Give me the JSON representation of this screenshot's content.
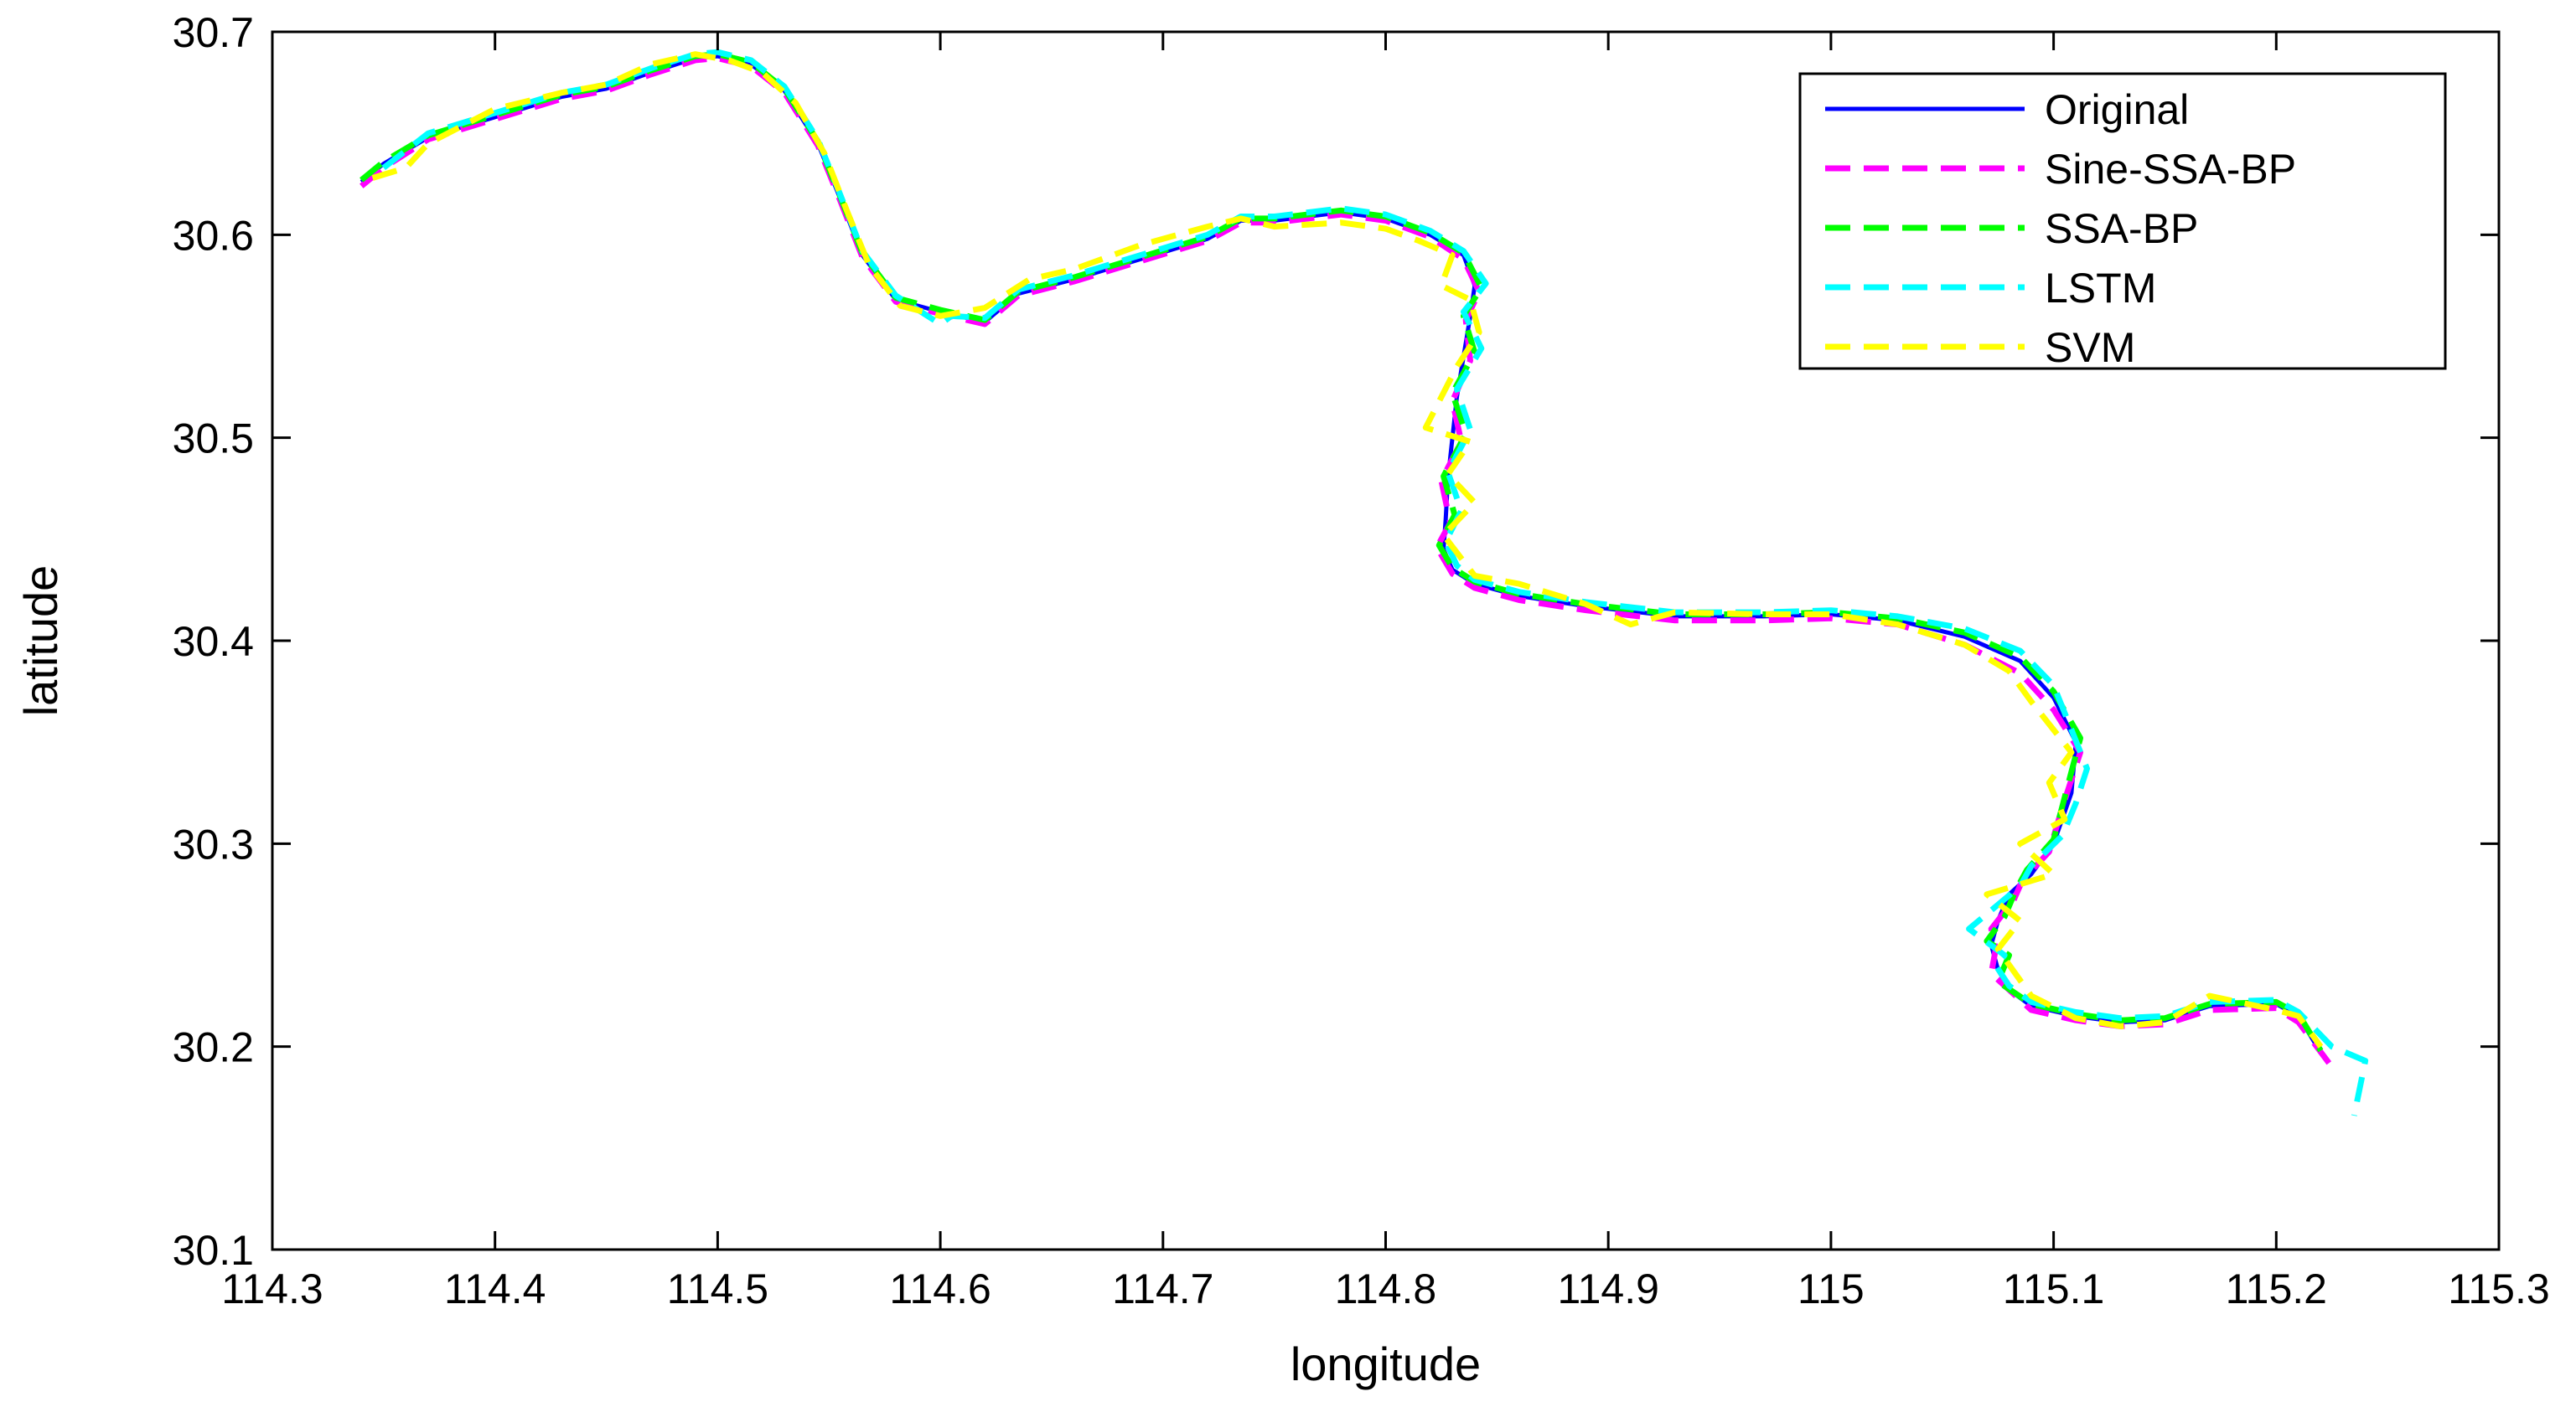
{
  "chart_data": {
    "type": "line",
    "title": "",
    "xlabel": "longitude",
    "ylabel": "latitude",
    "xlim": [
      114.3,
      115.3
    ],
    "ylim": [
      30.1,
      30.7
    ],
    "xticks": [
      "114.3",
      "114.4",
      "114.5",
      "114.6",
      "114.7",
      "114.8",
      "114.9",
      "115",
      "115.1",
      "115.2",
      "115.3"
    ],
    "yticks": [
      "30.1",
      "30.2",
      "30.3",
      "30.4",
      "30.5",
      "30.6",
      "30.7"
    ],
    "grid": false,
    "legend_position": "top-right",
    "series": [
      {
        "name": "Original",
        "color": "#0000ff",
        "style": "solid",
        "x": [
          114.34,
          114.35,
          114.37,
          114.4,
          114.43,
          114.45,
          114.47,
          114.49,
          114.5,
          114.515,
          114.53,
          114.545,
          114.555,
          114.565,
          114.58,
          114.6,
          114.62,
          114.635,
          114.66,
          114.69,
          114.72,
          114.735,
          114.75,
          114.78,
          114.8,
          114.82,
          114.835,
          114.84,
          114.838,
          114.835,
          114.832,
          114.83,
          114.828,
          114.827,
          114.826,
          114.83,
          114.84,
          114.86,
          114.89,
          114.93,
          114.97,
          115.0,
          115.03,
          115.06,
          115.085,
          115.1,
          115.11,
          115.108,
          115.1,
          115.09,
          115.08,
          115.075,
          115.072,
          115.075,
          115.08,
          115.09,
          115.11,
          115.13,
          115.15,
          115.17,
          115.2,
          115.21,
          115.22
        ],
        "y": [
          30.626,
          30.635,
          30.648,
          30.658,
          30.668,
          30.672,
          30.68,
          30.687,
          30.688,
          30.684,
          30.671,
          30.645,
          30.618,
          30.59,
          30.568,
          30.562,
          30.557,
          30.571,
          30.578,
          30.588,
          30.598,
          30.607,
          30.607,
          30.611,
          30.608,
          30.6,
          30.59,
          30.575,
          30.56,
          30.54,
          30.52,
          30.5,
          30.48,
          30.46,
          30.445,
          30.435,
          30.428,
          30.422,
          30.417,
          30.412,
          30.412,
          30.413,
          30.41,
          30.402,
          30.39,
          30.372,
          30.35,
          30.325,
          30.3,
          30.285,
          30.275,
          30.262,
          30.25,
          30.238,
          30.228,
          30.22,
          30.215,
          30.212,
          30.213,
          30.22,
          30.221,
          30.215,
          30.197
        ]
      },
      {
        "name": "Sine-SSA-BP",
        "color": "#ff00ff",
        "style": "dashed",
        "x": [
          114.34,
          114.35,
          114.37,
          114.4,
          114.43,
          114.45,
          114.47,
          114.49,
          114.5,
          114.515,
          114.53,
          114.545,
          114.555,
          114.565,
          114.58,
          114.6,
          114.62,
          114.635,
          114.66,
          114.69,
          114.72,
          114.735,
          114.75,
          114.78,
          114.8,
          114.82,
          114.835,
          114.842,
          114.836,
          114.838,
          114.83,
          114.834,
          114.825,
          114.829,
          114.823,
          114.83,
          114.84,
          114.86,
          114.89,
          114.93,
          114.97,
          115.0,
          115.03,
          115.06,
          115.085,
          115.1,
          115.112,
          115.104,
          115.098,
          115.086,
          115.082,
          115.072,
          115.074,
          115.072,
          115.082,
          115.09,
          115.11,
          115.13,
          115.15,
          115.17,
          115.2,
          115.21,
          115.225
        ],
        "y": [
          30.624,
          30.633,
          30.647,
          30.657,
          30.667,
          30.671,
          30.679,
          30.686,
          30.687,
          30.683,
          30.67,
          30.644,
          30.617,
          30.589,
          30.567,
          30.561,
          30.556,
          30.57,
          30.577,
          30.587,
          30.597,
          30.606,
          30.606,
          30.61,
          30.607,
          30.599,
          30.588,
          30.572,
          30.558,
          30.538,
          30.518,
          30.498,
          30.479,
          30.458,
          30.446,
          30.433,
          30.426,
          30.42,
          30.415,
          30.41,
          30.41,
          30.411,
          30.408,
          30.398,
          30.384,
          30.366,
          30.345,
          30.318,
          30.296,
          30.282,
          30.272,
          30.258,
          30.248,
          30.236,
          30.226,
          30.218,
          30.213,
          30.21,
          30.211,
          30.218,
          30.219,
          30.212,
          30.19
        ]
      },
      {
        "name": "SSA-BP",
        "color": "#00ff00",
        "style": "dashed",
        "x": [
          114.34,
          114.35,
          114.37,
          114.4,
          114.43,
          114.45,
          114.47,
          114.49,
          114.5,
          114.515,
          114.53,
          114.545,
          114.555,
          114.565,
          114.58,
          114.6,
          114.62,
          114.635,
          114.66,
          114.69,
          114.72,
          114.735,
          114.75,
          114.78,
          114.8,
          114.82,
          114.835,
          114.843,
          114.835,
          114.84,
          114.83,
          114.836,
          114.826,
          114.831,
          114.824,
          114.83,
          114.84,
          114.86,
          114.89,
          114.93,
          114.97,
          115.0,
          115.03,
          115.06,
          115.085,
          115.1,
          115.112,
          115.106,
          115.1,
          115.088,
          115.083,
          115.078,
          115.07,
          115.08,
          115.075,
          115.09,
          115.11,
          115.13,
          115.15,
          115.17,
          115.2,
          115.21,
          115.22
        ],
        "y": [
          30.627,
          30.636,
          30.649,
          30.659,
          30.669,
          30.673,
          30.681,
          30.688,
          30.689,
          30.685,
          30.672,
          30.646,
          30.619,
          30.591,
          30.569,
          30.563,
          30.558,
          30.572,
          30.579,
          30.589,
          30.599,
          30.608,
          30.608,
          30.612,
          30.609,
          30.601,
          30.591,
          30.574,
          30.56,
          30.542,
          30.522,
          30.502,
          30.481,
          30.462,
          30.447,
          30.436,
          30.429,
          30.423,
          30.418,
          30.413,
          30.413,
          30.414,
          30.411,
          30.404,
          30.392,
          30.375,
          30.352,
          30.327,
          30.302,
          30.287,
          30.277,
          30.264,
          30.252,
          30.245,
          30.232,
          30.221,
          30.216,
          30.213,
          30.214,
          30.221,
          30.222,
          30.216,
          30.198
        ]
      },
      {
        "name": "LSTM",
        "color": "#00ffff",
        "style": "dashed",
        "x": [
          114.35,
          114.37,
          114.4,
          114.43,
          114.45,
          114.47,
          114.49,
          114.5,
          114.515,
          114.53,
          114.545,
          114.555,
          114.565,
          114.58,
          114.6,
          114.605,
          114.62,
          114.635,
          114.66,
          114.69,
          114.72,
          114.735,
          114.75,
          114.78,
          114.8,
          114.82,
          114.835,
          114.845,
          114.835,
          114.843,
          114.832,
          114.838,
          114.828,
          114.834,
          114.827,
          114.832,
          114.84,
          114.86,
          114.89,
          114.93,
          114.97,
          115.0,
          115.03,
          115.06,
          115.085,
          115.1,
          115.115,
          115.11,
          115.104,
          115.09,
          115.085,
          115.062,
          115.078,
          115.074,
          115.08,
          115.09,
          115.11,
          115.13,
          115.15,
          115.17,
          115.2,
          115.21,
          115.225,
          115.24,
          115.235
        ],
        "y": [
          30.633,
          30.65,
          30.66,
          30.67,
          30.674,
          30.682,
          30.689,
          30.69,
          30.686,
          30.673,
          30.647,
          30.62,
          30.592,
          30.57,
          30.556,
          30.56,
          30.559,
          30.573,
          30.58,
          30.59,
          30.6,
          30.609,
          30.609,
          30.613,
          30.61,
          30.602,
          30.592,
          30.576,
          30.562,
          30.544,
          30.524,
          30.504,
          30.483,
          30.464,
          30.449,
          30.437,
          30.43,
          30.424,
          30.419,
          30.414,
          30.414,
          30.415,
          30.412,
          30.406,
          30.395,
          30.378,
          30.337,
          30.32,
          30.304,
          30.289,
          30.279,
          30.258,
          30.245,
          30.24,
          30.23,
          30.222,
          30.217,
          30.214,
          30.215,
          30.222,
          30.223,
          30.217,
          30.2,
          30.193,
          30.166
        ]
      },
      {
        "name": "SVM",
        "color": "#ffff00",
        "style": "dashed",
        "x": [
          114.345,
          114.36,
          114.37,
          114.4,
          114.43,
          114.45,
          114.47,
          114.49,
          114.505,
          114.52,
          114.535,
          114.548,
          114.558,
          114.568,
          114.582,
          114.6,
          114.62,
          114.64,
          114.66,
          114.69,
          114.72,
          114.735,
          114.75,
          114.78,
          114.8,
          114.815,
          114.83,
          114.825,
          114.838,
          114.842,
          114.832,
          114.818,
          114.838,
          114.828,
          114.84,
          114.826,
          114.84,
          114.86,
          114.89,
          114.91,
          114.93,
          114.97,
          115.0,
          115.03,
          115.06,
          115.08,
          115.09,
          115.108,
          115.098,
          115.105,
          115.085,
          115.1,
          115.07,
          115.085,
          115.075,
          115.09,
          115.11,
          115.13,
          115.15,
          115.17,
          115.2,
          115.21,
          115.22
        ],
        "y": [
          30.628,
          30.633,
          30.645,
          30.662,
          30.67,
          30.674,
          30.684,
          30.689,
          30.686,
          30.68,
          30.665,
          30.64,
          30.612,
          30.585,
          30.565,
          30.56,
          30.564,
          30.578,
          30.583,
          30.595,
          30.604,
          30.608,
          30.604,
          30.606,
          30.603,
          30.597,
          30.59,
          30.575,
          30.568,
          30.552,
          30.535,
          30.505,
          30.498,
          30.482,
          30.468,
          30.452,
          30.432,
          30.428,
          30.418,
          30.408,
          30.414,
          30.413,
          30.413,
          30.408,
          30.398,
          30.385,
          30.37,
          30.345,
          30.33,
          30.312,
          30.3,
          30.285,
          30.275,
          30.262,
          30.248,
          30.225,
          30.214,
          30.21,
          30.212,
          30.225,
          30.218,
          30.215,
          30.2
        ]
      }
    ]
  }
}
